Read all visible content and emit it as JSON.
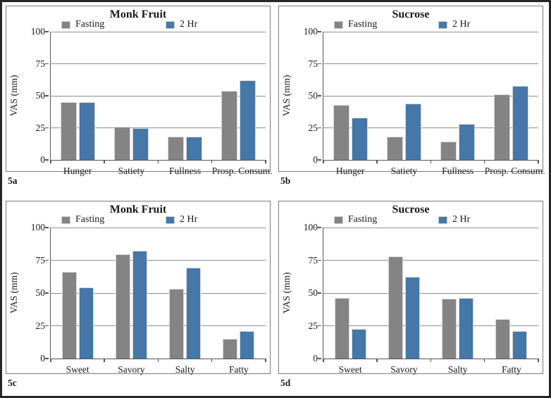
{
  "figure": {
    "type": "four-panel-bar-figure",
    "colors": {
      "fasting_bar": "#848484",
      "two_hr_bar": "#4577a9",
      "bar_edge": "#d8d8d8",
      "gridline": "#8f8f8f",
      "axis": "#555555",
      "panel_border": "#7a7a7a",
      "figure_border": "#262626",
      "text": "#1a1a1a",
      "background": "#ffffff"
    }
  },
  "chart_data": [
    {
      "id": "5a",
      "type": "bar",
      "title": "Monk Fruit",
      "xlabel": "",
      "ylabel": "VAS (mm)",
      "ylim": [
        0,
        100
      ],
      "yticks": [
        0,
        25,
        50,
        75,
        100
      ],
      "grid": "horizontal",
      "legend_position": "top",
      "categories": [
        "Hunger",
        "Satiety",
        "Fullness",
        "Prosp. Consum."
      ],
      "series": [
        {
          "name": "Fasting",
          "color": "#848484",
          "values": [
            45,
            26,
            18,
            54
          ]
        },
        {
          "name": "2 Hr",
          "color": "#4577a9",
          "values": [
            45,
            25,
            18,
            62
          ]
        }
      ]
    },
    {
      "id": "5b",
      "type": "bar",
      "title": "Sucrose",
      "xlabel": "",
      "ylabel": "VAS (mm)",
      "ylim": [
        0,
        100
      ],
      "yticks": [
        0,
        25,
        50,
        75,
        100
      ],
      "grid": "horizontal",
      "legend_position": "top",
      "categories": [
        "Hunger",
        "Satiety",
        "Fullness",
        "Prosp. Consum."
      ],
      "series": [
        {
          "name": "Fasting",
          "color": "#848484",
          "values": [
            43,
            18,
            14.5,
            51
          ]
        },
        {
          "name": "2 Hr",
          "color": "#4577a9",
          "values": [
            33,
            44,
            28,
            57.5
          ]
        }
      ]
    },
    {
      "id": "5c",
      "type": "bar",
      "title": "Monk Fruit",
      "xlabel": "",
      "ylabel": "VAS (mm)",
      "ylim": [
        0,
        100
      ],
      "yticks": [
        0,
        25,
        50,
        75,
        100
      ],
      "grid": "horizontal",
      "legend_position": "top",
      "categories": [
        "Sweet",
        "Savory",
        "Salty",
        "Fatty"
      ],
      "series": [
        {
          "name": "Fasting",
          "color": "#848484",
          "values": [
            66,
            79.5,
            53.5,
            15
          ]
        },
        {
          "name": "2 Hr",
          "color": "#4577a9",
          "values": [
            54.5,
            82,
            69.5,
            21
          ]
        }
      ]
    },
    {
      "id": "5d",
      "type": "bar",
      "title": "Sucrose",
      "xlabel": "",
      "ylabel": "VAS (mm)",
      "ylim": [
        0,
        100
      ],
      "yticks": [
        0,
        25,
        50,
        75,
        100
      ],
      "grid": "horizontal",
      "legend_position": "top",
      "categories": [
        "Sweet",
        "Savory",
        "Salty",
        "Fatty"
      ],
      "series": [
        {
          "name": "Fasting",
          "color": "#848484",
          "values": [
            46,
            78,
            45.5,
            30
          ]
        },
        {
          "name": "2 Hr",
          "color": "#4577a9",
          "values": [
            22.5,
            62.5,
            46.5,
            21
          ]
        }
      ]
    }
  ]
}
